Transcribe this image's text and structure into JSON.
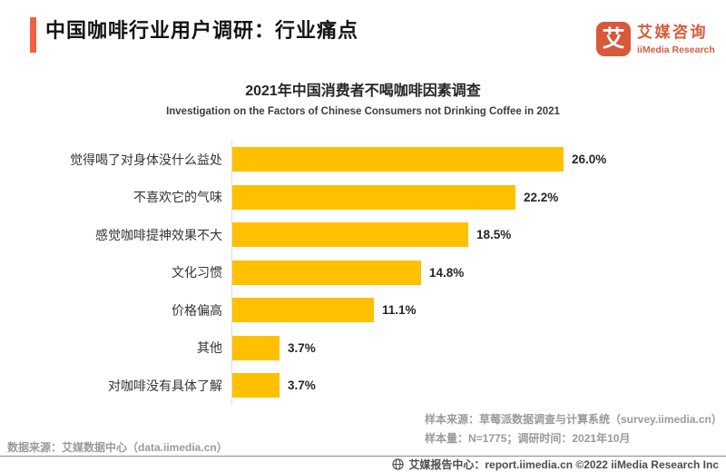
{
  "header": {
    "title": "中国咖啡行业用户调研：行业痛点",
    "logo": {
      "icon_char": "艾",
      "name_cn": "艾媒咨询",
      "name_en": "iiMedia Research"
    }
  },
  "chart_data": {
    "type": "bar",
    "orientation": "horizontal",
    "title": "2021年中国消费者不喝咖啡因素调查",
    "subtitle": "Investigation on the Factors of Chinese Consumers not Drinking Coffee in 2021",
    "categories": [
      "觉得喝了对身体没什么益处",
      "不喜欢它的气味",
      "感觉咖啡提神效果不大",
      "文化习惯",
      "价格偏高",
      "其他",
      "对咖啡没有具体了解"
    ],
    "values": [
      26.0,
      22.2,
      18.5,
      14.8,
      11.1,
      3.7,
      3.7
    ],
    "value_labels": [
      "26.0%",
      "22.2%",
      "18.5%",
      "14.8%",
      "11.1%",
      "3.7%",
      "3.7%"
    ],
    "unit": "%",
    "xlim": [
      0,
      28
    ],
    "grid": false,
    "legend": false,
    "bar_color": "#FFC000",
    "value_label_position": "outside-end"
  },
  "sources": {
    "data_source": "数据来源：艾媒数据中心（data.iimedia.cn）",
    "sample_source": "样本来源：草莓派数据调查与计算系统（survey.iimedia.cn）",
    "sample_size": "样本量：N=1775；调研时间：2021年10月"
  },
  "footer": {
    "text": "艾媒报告中心：report.iimedia.cn   ©2022   iiMedia Research Inc"
  },
  "colors": {
    "accent_orange_red": "#F2613F",
    "logo_orange_red": "#DA5A3C",
    "bar_yellow": "#FFC000",
    "source_gray": "#9a9a9a"
  }
}
